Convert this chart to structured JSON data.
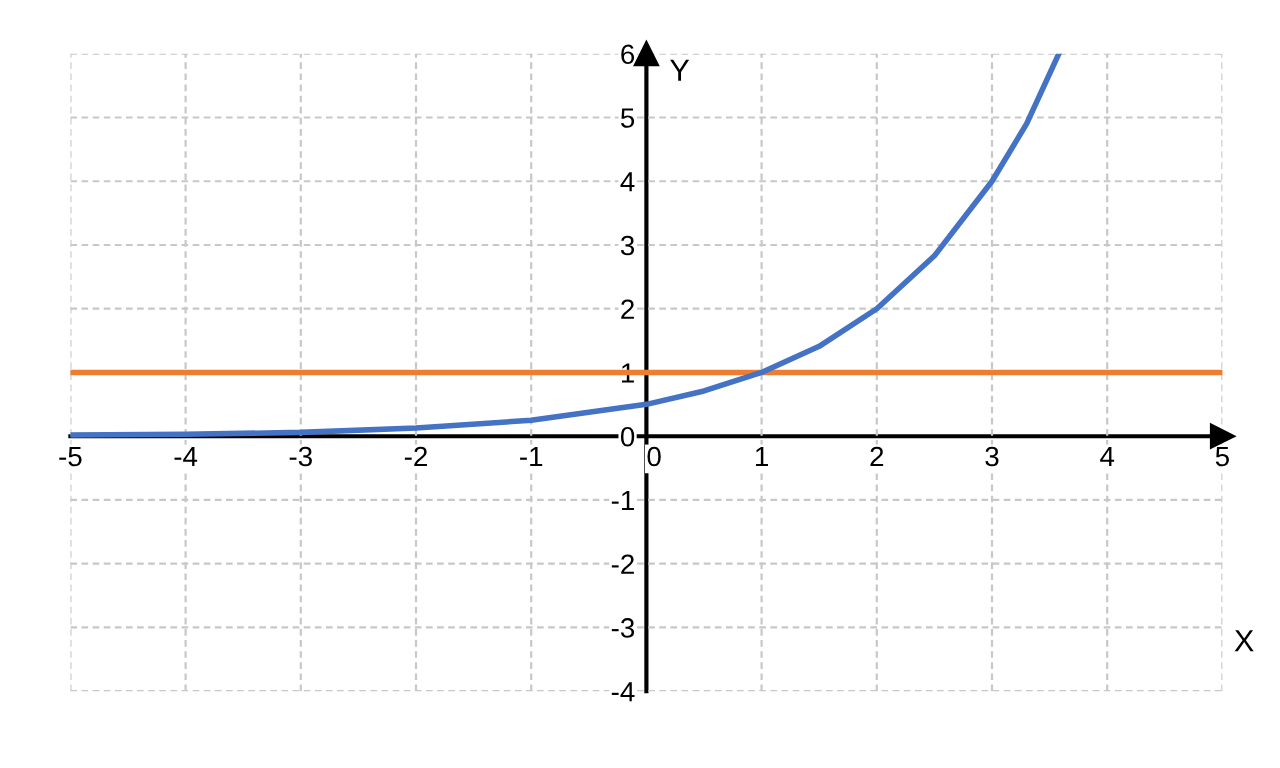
{
  "chart_data": {
    "type": "line",
    "xlabel": "X",
    "ylabel": "Y",
    "series": [
      {
        "color": "#4472c4",
        "x": [
          -5,
          -4,
          -3,
          -2,
          -1,
          0,
          0.5,
          1,
          1.5,
          2,
          2.5,
          3,
          3.3,
          3.58
        ],
        "values": [
          0.02,
          0.03,
          0.06,
          0.13,
          0.25,
          0.5,
          0.71,
          1,
          1.41,
          2,
          2.83,
          4,
          4.9,
          6
        ]
      }
    ],
    "ref_lines": [
      {
        "axis": "y",
        "value": 1,
        "label": null,
        "color": "#ed7d31"
      }
    ],
    "xlim": [
      -5,
      5
    ],
    "ylim": [
      -4,
      6
    ],
    "xticks": [
      -5,
      -4,
      -3,
      -2,
      -1,
      0,
      1,
      2,
      3,
      4,
      5
    ],
    "yticks": [
      -4,
      -3,
      -2,
      -1,
      0,
      1,
      2,
      3,
      4,
      5,
      6
    ],
    "grid": true,
    "marker": "none",
    "line_style": "solid",
    "legend": false
  }
}
